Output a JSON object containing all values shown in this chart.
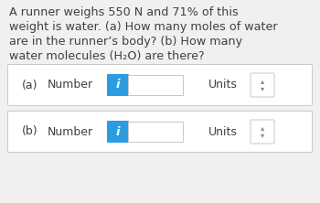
{
  "bg_color": "#f0f0f0",
  "text_color": "#404040",
  "question_lines": [
    "A runner weighs 550 N and 71% of this",
    "weight is water. (a) How many moles of water",
    "are in the runner’s body? (b) How many",
    "water molecules (H₂O) are there?"
  ],
  "row_a_label": "(a)",
  "row_b_label": "(b)",
  "number_label": "Number",
  "units_label": "Units",
  "info_btn_color": "#2a9de0",
  "info_btn_text": "i",
  "row_bg": "#ffffff",
  "row_border": "#c8c8c8",
  "spinner_color": "#888888",
  "font_size_question": 9.2,
  "font_size_row": 9.0,
  "fig_width": 3.5,
  "fig_height": 2.22,
  "dpi": 100
}
